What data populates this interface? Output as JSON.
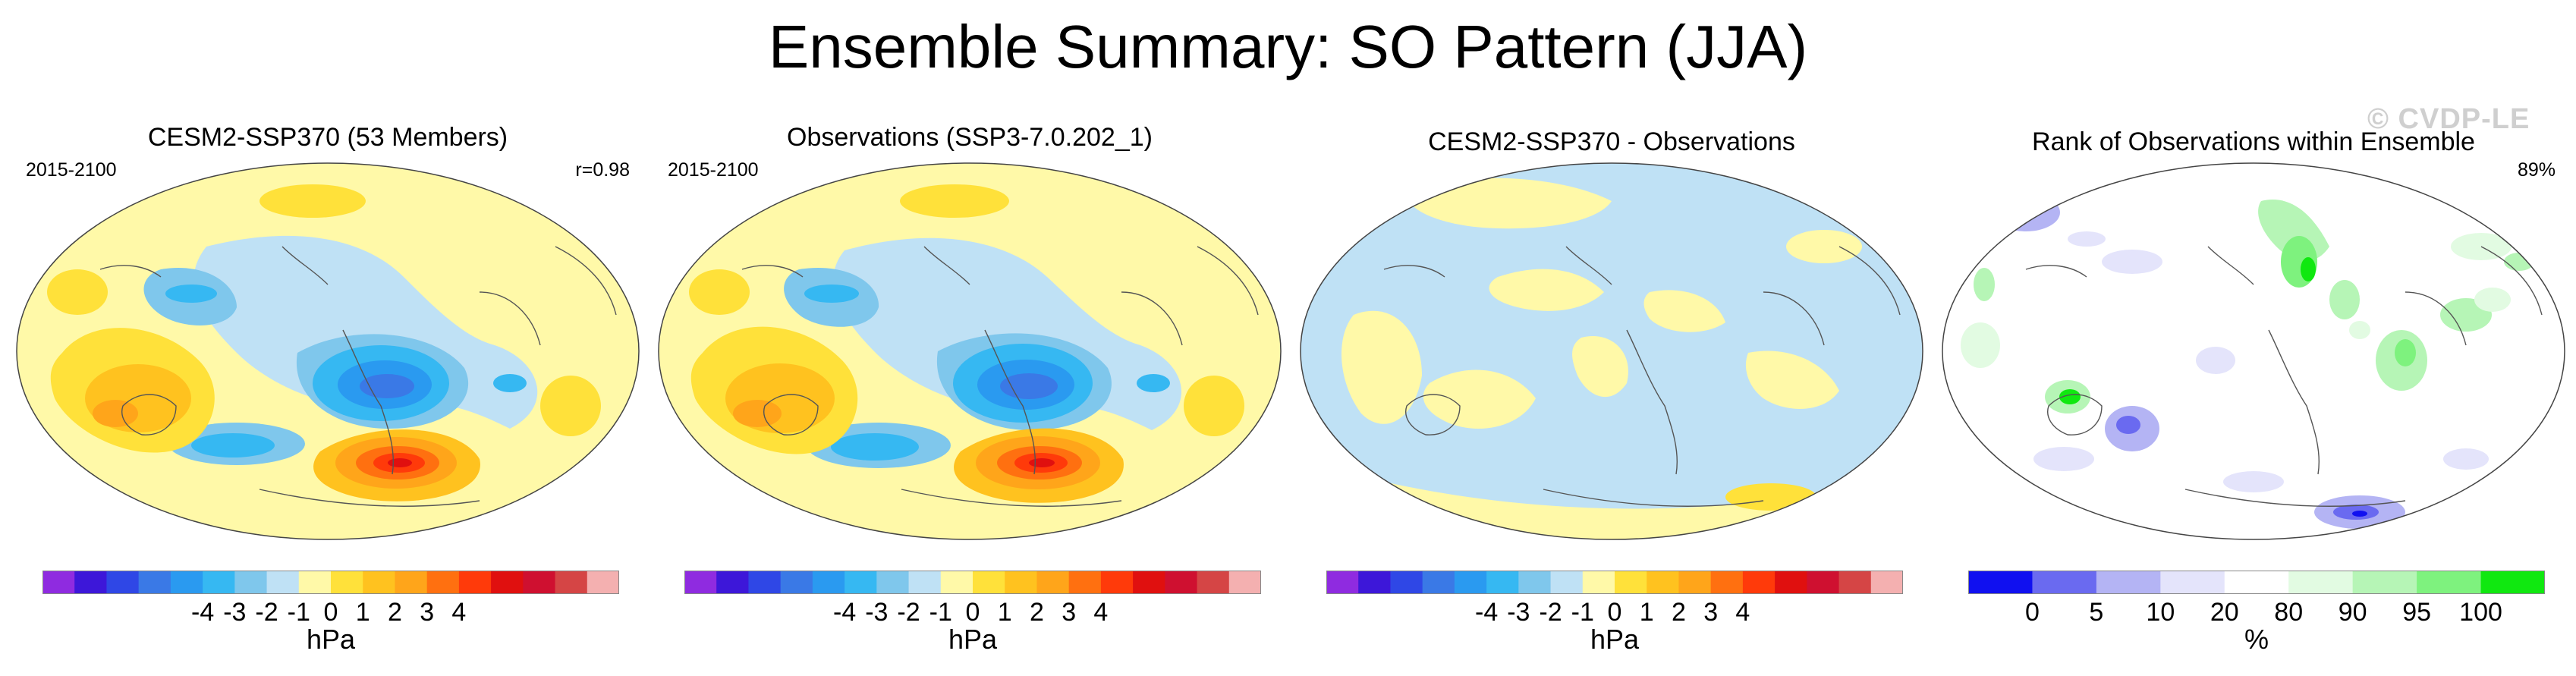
{
  "title": "Ensemble Summary: SO Pattern (JJA)",
  "watermark": "© CVDP-LE",
  "panels": [
    {
      "title": "CESM2-SSP370 (53 Members)",
      "left_label": "2015-2100",
      "right_label": "r=0.98",
      "field": "model"
    },
    {
      "title": "Observations (SSP3-7.0.202_1)",
      "left_label": "2015-2100",
      "right_label": "",
      "field": "obs"
    },
    {
      "title": "CESM2-SSP370 - Observations",
      "left_label": "",
      "right_label": "",
      "field": "diff"
    },
    {
      "title": "Rank of Observations within Ensemble",
      "left_label": "",
      "right_label": "89%",
      "field": "rank"
    }
  ],
  "colorbars": [
    {
      "unit": "hPa",
      "ticks": [
        "-4",
        "-3",
        "-2",
        "-1",
        "0",
        "1",
        "2",
        "3",
        "4"
      ],
      "colors": [
        "#8f2be0",
        "#3d17d9",
        "#2f47e6",
        "#3a79e6",
        "#2a9af0",
        "#36b8f2",
        "#7fc7ec",
        "#bfe1f5",
        "#fff9a8",
        "#ffe13a",
        "#ffc21f",
        "#ffa51a",
        "#ff7010",
        "#ff3a0a",
        "#e0100f",
        "#cf1030",
        "#d54545",
        "#f4b0b0"
      ]
    },
    {
      "unit": "hPa",
      "ticks": [
        "-4",
        "-3",
        "-2",
        "-1",
        "0",
        "1",
        "2",
        "3",
        "4"
      ],
      "colors": [
        "#8f2be0",
        "#3d17d9",
        "#2f47e6",
        "#3a79e6",
        "#2a9af0",
        "#36b8f2",
        "#7fc7ec",
        "#bfe1f5",
        "#fff9a8",
        "#ffe13a",
        "#ffc21f",
        "#ffa51a",
        "#ff7010",
        "#ff3a0a",
        "#e0100f",
        "#cf1030",
        "#d54545",
        "#f4b0b0"
      ]
    },
    {
      "unit": "hPa",
      "ticks": [
        "-4",
        "-3",
        "-2",
        "-1",
        "0",
        "1",
        "2",
        "3",
        "4"
      ],
      "colors": [
        "#8f2be0",
        "#3d17d9",
        "#2f47e6",
        "#3a79e6",
        "#2a9af0",
        "#36b8f2",
        "#7fc7ec",
        "#bfe1f5",
        "#fff9a8",
        "#ffe13a",
        "#ffc21f",
        "#ffa51a",
        "#ff7010",
        "#ff3a0a",
        "#e0100f",
        "#cf1030",
        "#d54545",
        "#f4b0b0"
      ]
    },
    {
      "unit": "%",
      "ticks": [
        "0",
        "5",
        "10",
        "20",
        "80",
        "90",
        "95",
        "100"
      ],
      "colors": [
        "#1010f0",
        "#6a6af0",
        "#b4b4f4",
        "#e4e4fb",
        "#ffffff",
        "#e2fbe2",
        "#b6f5b6",
        "#7ef27e",
        "#10e810"
      ]
    }
  ]
}
